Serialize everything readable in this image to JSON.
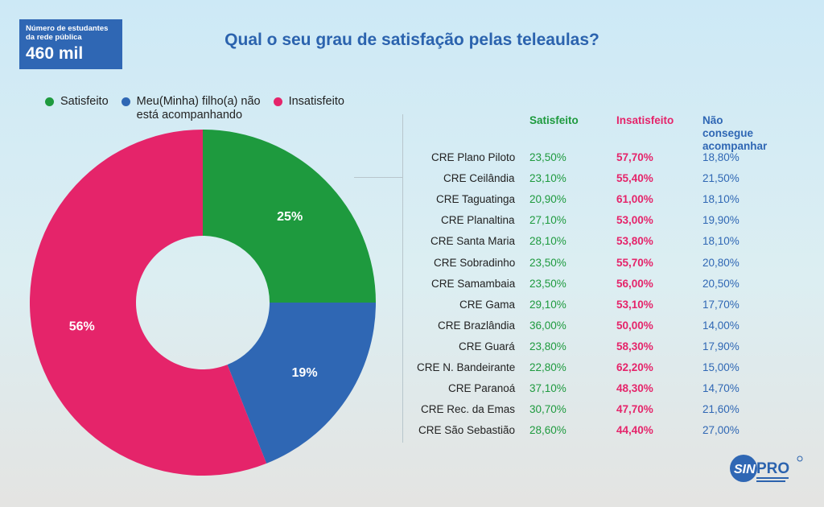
{
  "badge": {
    "label": "Número de estudantes\nda rede pública",
    "value": "460 mil"
  },
  "title": "Qual o seu grau de satisfação pelas teleaulas?",
  "legend": [
    {
      "label": "Satisfeito",
      "color": "#1e9a3e"
    },
    {
      "label": "Meu(Minha) filho(a) não\nestá acompanhando",
      "color": "#2f67b4"
    },
    {
      "label": "Insatisfeito",
      "color": "#e5246a"
    }
  ],
  "chart_data": [
    {
      "type": "pie",
      "donut": true,
      "slices": [
        {
          "name": "Satisfeito",
          "value": 25,
          "label": "25%",
          "color": "#1e9a3e"
        },
        {
          "name": "Meu(Minha) filho(a) não está acompanhando",
          "value": 19,
          "label": "19%",
          "color": "#2f67b4"
        },
        {
          "name": "Insatisfeito",
          "value": 56,
          "label": "56%",
          "color": "#e5246a"
        }
      ]
    },
    {
      "type": "table",
      "columns": [
        "Satisfeito",
        "Insatisfeito",
        "Não consegue\nacompanhar"
      ],
      "rows": [
        {
          "name": "CRE Plano Piloto",
          "satisfeito": "23,50%",
          "insatisfeito": "57,70%",
          "nao": "18,80%"
        },
        {
          "name": "CRE Ceilândia",
          "satisfeito": "23,10%",
          "insatisfeito": "55,40%",
          "nao": "21,50%"
        },
        {
          "name": "CRE Taguatinga",
          "satisfeito": "20,90%",
          "insatisfeito": "61,00%",
          "nao": "18,10%"
        },
        {
          "name": "CRE Planaltina",
          "satisfeito": "27,10%",
          "insatisfeito": "53,00%",
          "nao": "19,90%"
        },
        {
          "name": "CRE Santa Maria",
          "satisfeito": "28,10%",
          "insatisfeito": "53,80%",
          "nao": "18,10%"
        },
        {
          "name": "CRE Sobradinho",
          "satisfeito": "23,50%",
          "insatisfeito": "55,70%",
          "nao": "20,80%"
        },
        {
          "name": "CRE Samambaia",
          "satisfeito": "23,50%",
          "insatisfeito": "56,00%",
          "nao": "20,50%"
        },
        {
          "name": "CRE Gama",
          "satisfeito": "29,10%",
          "insatisfeito": "53,10%",
          "nao": "17,70%"
        },
        {
          "name": "CRE Brazlândia",
          "satisfeito": "36,00%",
          "insatisfeito": "50,00%",
          "nao": "14,00%"
        },
        {
          "name": "CRE Guará",
          "satisfeito": "23,80%",
          "insatisfeito": "58,30%",
          "nao": "17,90%"
        },
        {
          "name": "CRE N. Bandeirante",
          "satisfeito": "22,80%",
          "insatisfeito": "62,20%",
          "nao": "15,00%"
        },
        {
          "name": "CRE Paranoá",
          "satisfeito": "37,10%",
          "insatisfeito": "48,30%",
          "nao": "14,70%"
        },
        {
          "name": "CRE Rec. da Emas",
          "satisfeito": "30,70%",
          "insatisfeito": "47,70%",
          "nao": "21,60%"
        },
        {
          "name": "CRE São Sebastião",
          "satisfeito": "28,60%",
          "insatisfeito": "44,40%",
          "nao": "27,00%"
        }
      ]
    }
  ],
  "logo": {
    "text": "SINPRO"
  }
}
